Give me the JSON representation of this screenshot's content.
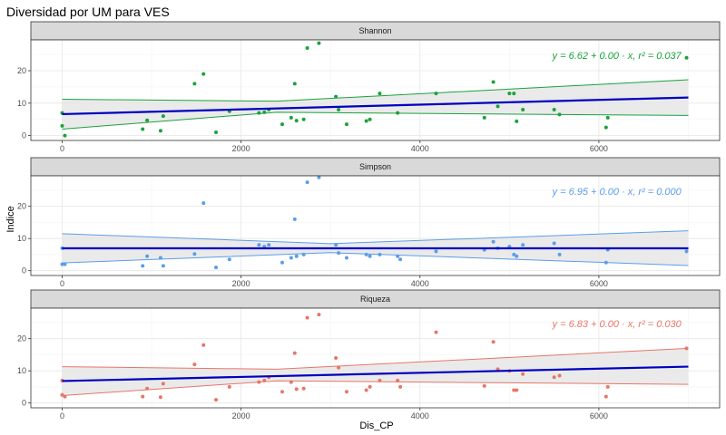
{
  "figure": {
    "title": "Diversidad por UM para VES",
    "xlabel": "Dis_CP",
    "ylabel": "Indice"
  },
  "chart_data": {
    "type": "scatter",
    "x_ticks": [
      0,
      2000,
      4000,
      6000
    ],
    "xlim": [
      -350,
      7350
    ],
    "ylim": [
      -1.5,
      29.5
    ],
    "y_ticks": [
      0,
      10,
      20
    ],
    "grid": true,
    "legend": "none",
    "fit_color": "#0000c0",
    "panels": [
      {
        "name": "Shannon",
        "color": "#1aa23c",
        "equation": "y = 6.62 + 0.00 · x,  r² = 0.037",
        "fit": {
          "intercept": 6.62,
          "slope": 0.00073
        },
        "band": {
          "upper": [
            11.2,
            17.2
          ],
          "lower": [
            2.0,
            6.2
          ],
          "mid_x": 2400,
          "mid_upper": 10.6,
          "mid_lower": 7.2
        },
        "points": [
          [
            0,
            3
          ],
          [
            0,
            7
          ],
          [
            30,
            0
          ],
          [
            900,
            2
          ],
          [
            950,
            4.7
          ],
          [
            1100,
            1.5
          ],
          [
            1130,
            6
          ],
          [
            1480,
            16
          ],
          [
            1580,
            19
          ],
          [
            1720,
            1
          ],
          [
            1870,
            7.5
          ],
          [
            2200,
            7
          ],
          [
            2260,
            7.2
          ],
          [
            2310,
            8
          ],
          [
            2460,
            3.5
          ],
          [
            2560,
            5.5
          ],
          [
            2600,
            16
          ],
          [
            2620,
            4.6
          ],
          [
            2700,
            5
          ],
          [
            2740,
            27
          ],
          [
            2870,
            28.5
          ],
          [
            3060,
            12
          ],
          [
            3090,
            8
          ],
          [
            3180,
            3.5
          ],
          [
            3400,
            4.5
          ],
          [
            3440,
            5
          ],
          [
            3550,
            13
          ],
          [
            3750,
            7
          ],
          [
            4180,
            13
          ],
          [
            4720,
            5.5
          ],
          [
            4820,
            16.5
          ],
          [
            4870,
            9
          ],
          [
            5000,
            13
          ],
          [
            5050,
            13
          ],
          [
            5080,
            4.4
          ],
          [
            5150,
            8
          ],
          [
            5500,
            8
          ],
          [
            5560,
            6.5
          ],
          [
            6080,
            2.5
          ],
          [
            6100,
            5.5
          ],
          [
            6980,
            24
          ]
        ]
      },
      {
        "name": "Simpson",
        "color": "#5b9ee8",
        "equation": "y = 6.95 + 0.00 · x,  r² = 0.000",
        "fit": {
          "intercept": 6.95,
          "slope": 0.0
        },
        "band": {
          "upper": [
            11.5,
            12.4
          ],
          "lower": [
            2.4,
            1.6
          ],
          "mid_x": 3000,
          "mid_upper": 8.4,
          "mid_lower": 5.6
        },
        "points": [
          [
            0,
            2
          ],
          [
            0,
            7
          ],
          [
            30,
            2
          ],
          [
            900,
            1.5
          ],
          [
            950,
            4.5
          ],
          [
            1100,
            4
          ],
          [
            1130,
            1.5
          ],
          [
            1480,
            5.2
          ],
          [
            1580,
            21
          ],
          [
            1720,
            1
          ],
          [
            1870,
            3.5
          ],
          [
            2200,
            8
          ],
          [
            2260,
            7.5
          ],
          [
            2310,
            8
          ],
          [
            2460,
            2.5
          ],
          [
            2560,
            4
          ],
          [
            2600,
            16
          ],
          [
            2620,
            4.5
          ],
          [
            2700,
            5
          ],
          [
            2740,
            27.5
          ],
          [
            2870,
            29
          ],
          [
            3060,
            8
          ],
          [
            3090,
            5.5
          ],
          [
            3180,
            4
          ],
          [
            3400,
            5
          ],
          [
            3440,
            4.5
          ],
          [
            3550,
            5
          ],
          [
            3750,
            4.5
          ],
          [
            3780,
            3.5
          ],
          [
            4180,
            6
          ],
          [
            4720,
            6.5
          ],
          [
            4820,
            9
          ],
          [
            4870,
            7
          ],
          [
            5000,
            7.5
          ],
          [
            5050,
            5
          ],
          [
            5080,
            4.5
          ],
          [
            5150,
            8
          ],
          [
            5500,
            8.5
          ],
          [
            5560,
            5
          ],
          [
            6080,
            2.5
          ],
          [
            6100,
            6.5
          ],
          [
            6980,
            6
          ]
        ]
      },
      {
        "name": "Riqueza",
        "color": "#e7766a",
        "equation": "y = 6.83 + 0.00 · x,  r² = 0.030",
        "fit": {
          "intercept": 6.83,
          "slope": 0.00064
        },
        "band": {
          "upper": [
            11.3,
            17.0
          ],
          "lower": [
            2.3,
            5.8
          ],
          "mid_x": 2400,
          "mid_upper": 10.5,
          "mid_lower": 6.9
        },
        "points": [
          [
            0,
            2.5
          ],
          [
            0,
            7
          ],
          [
            30,
            2
          ],
          [
            900,
            2
          ],
          [
            950,
            4.5
          ],
          [
            1100,
            1.8
          ],
          [
            1130,
            6
          ],
          [
            1480,
            12
          ],
          [
            1580,
            18
          ],
          [
            1720,
            1
          ],
          [
            1870,
            5
          ],
          [
            2200,
            6.5
          ],
          [
            2260,
            7
          ],
          [
            2310,
            8
          ],
          [
            2460,
            3.5
          ],
          [
            2560,
            6.5
          ],
          [
            2600,
            15.5
          ],
          [
            2620,
            4.3
          ],
          [
            2700,
            4.5
          ],
          [
            2740,
            26.5
          ],
          [
            2870,
            27.5
          ],
          [
            3060,
            14
          ],
          [
            3090,
            11
          ],
          [
            3180,
            3.5
          ],
          [
            3400,
            4
          ],
          [
            3440,
            5
          ],
          [
            3550,
            7
          ],
          [
            3750,
            7
          ],
          [
            3780,
            5
          ],
          [
            4180,
            22
          ],
          [
            4720,
            5.3
          ],
          [
            4820,
            19
          ],
          [
            4870,
            10.5
          ],
          [
            5000,
            10
          ],
          [
            5050,
            4
          ],
          [
            5080,
            4
          ],
          [
            5150,
            9
          ],
          [
            5500,
            8
          ],
          [
            5560,
            8.5
          ],
          [
            6080,
            2
          ],
          [
            6100,
            5
          ],
          [
            6980,
            17
          ]
        ]
      }
    ]
  }
}
